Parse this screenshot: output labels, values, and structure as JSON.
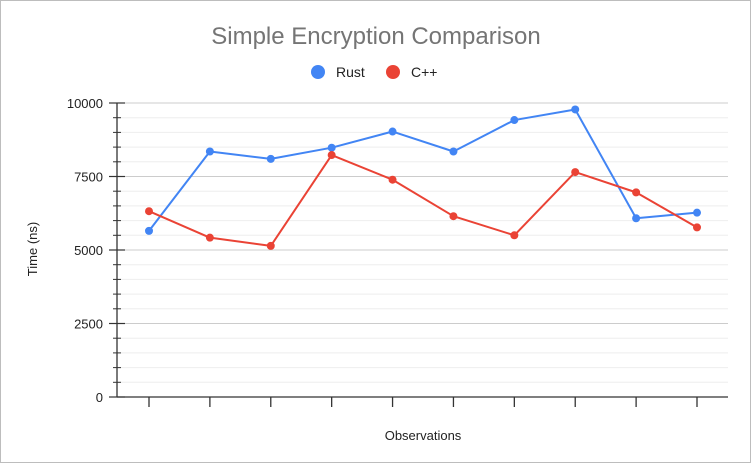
{
  "chart_data": {
    "type": "line",
    "title": "Simple Encryption Comparison",
    "xlabel": "Observations",
    "ylabel": "Time (ns)",
    "ylim": [
      0,
      10000
    ],
    "yticks": [
      0,
      2500,
      5000,
      7500,
      10000
    ],
    "x": [
      1,
      2,
      3,
      4,
      5,
      6,
      7,
      8,
      9,
      10
    ],
    "legend_position": "top",
    "grid": true,
    "series": [
      {
        "name": "Rust",
        "color": "#4285f4",
        "values": [
          5650,
          8350,
          8100,
          8480,
          9030,
          8350,
          9420,
          9780,
          6080,
          6270
        ]
      },
      {
        "name": "C++",
        "color": "#ea4335",
        "values": [
          6320,
          5420,
          5140,
          8230,
          7390,
          6150,
          5500,
          7650,
          6960,
          5770
        ]
      }
    ]
  }
}
